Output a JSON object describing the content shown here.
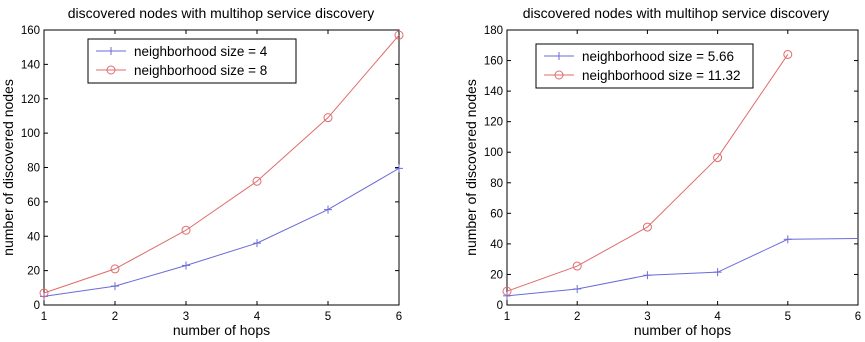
{
  "chart_data": [
    {
      "type": "line",
      "title": "discovered nodes with multihop service discovery",
      "xlabel": "number of hops",
      "ylabel": "number of discovered nodes",
      "xlim": [
        1,
        6
      ],
      "ylim": [
        0,
        160
      ],
      "xticks": [
        1,
        2,
        3,
        4,
        5,
        6
      ],
      "yticks": [
        0,
        20,
        40,
        60,
        80,
        100,
        120,
        140,
        160
      ],
      "grid": false,
      "legend": "top-left",
      "x": [
        1,
        2,
        3,
        4,
        5,
        6
      ],
      "series": [
        {
          "name": "neighborhood size = 4",
          "values": [
            5,
            11,
            23,
            36,
            55.5,
            79.5
          ],
          "color": "#6b6bd8",
          "marker": "plus"
        },
        {
          "name": "neighborhood size = 8",
          "values": [
            7,
            21,
            43.5,
            72,
            109,
            157
          ],
          "color": "#e06b6b",
          "marker": "circle"
        }
      ]
    },
    {
      "type": "line",
      "title": "discovered nodes with multihop service discovery",
      "xlabel": "number of hops",
      "ylabel": "number of discovered nodes",
      "xlim": [
        1,
        6
      ],
      "ylim": [
        0,
        180
      ],
      "xticks": [
        1,
        2,
        3,
        4,
        5,
        6
      ],
      "yticks": [
        0,
        20,
        40,
        60,
        80,
        100,
        120,
        140,
        160,
        180
      ],
      "grid": false,
      "legend": "top-left",
      "x": [
        1,
        2,
        3,
        4,
        5,
        6
      ],
      "series": [
        {
          "name": "neighborhood size = 5.66",
          "x": [
            1,
            2,
            3,
            4,
            5,
            6
          ],
          "values": [
            6,
            10.5,
            19.5,
            21.5,
            43,
            43.5
          ],
          "markers": [
            true,
            true,
            true,
            true,
            true,
            false
          ],
          "color": "#6b6bd8",
          "marker": "plus"
        },
        {
          "name": "neighborhood size = 11.32",
          "x": [
            1,
            2,
            3,
            4,
            5
          ],
          "values": [
            9,
            25.5,
            51,
            96.5,
            164
          ],
          "markers": [
            true,
            true,
            true,
            true,
            true
          ],
          "color": "#e06b6b",
          "marker": "circle"
        }
      ]
    }
  ]
}
